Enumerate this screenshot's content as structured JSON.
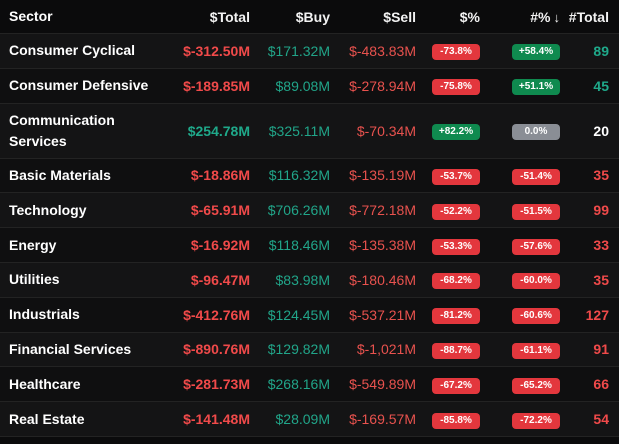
{
  "header": {
    "sector": "Sector",
    "total": "$Total",
    "buy": "$Buy",
    "sell": "$Sell",
    "pct": "$%",
    "count_pct": "#%",
    "count": "#Total",
    "sort_icon": "↓"
  },
  "rows": [
    {
      "sector": "Consumer Cyclical",
      "total": "$-312.50M",
      "buy": "$171.32M",
      "sell": "$-483.83M",
      "pct": "-73.8%",
      "count_pct": "+58.4%",
      "count": "89"
    },
    {
      "sector": "Consumer Defensive",
      "total": "$-189.85M",
      "buy": "$89.08M",
      "sell": "$-278.94M",
      "pct": "-75.8%",
      "count_pct": "+51.1%",
      "count": "45"
    },
    {
      "sector": "Communication Services",
      "total": "$254.78M",
      "buy": "$325.11M",
      "sell": "$-70.34M",
      "pct": "+82.2%",
      "count_pct": "0.0%",
      "count": "20"
    },
    {
      "sector": "Basic Materials",
      "total": "$-18.86M",
      "buy": "$116.32M",
      "sell": "$-135.19M",
      "pct": "-53.7%",
      "count_pct": "-51.4%",
      "count": "35"
    },
    {
      "sector": "Technology",
      "total": "$-65.91M",
      "buy": "$706.26M",
      "sell": "$-772.18M",
      "pct": "-52.2%",
      "count_pct": "-51.5%",
      "count": "99"
    },
    {
      "sector": "Energy",
      "total": "$-16.92M",
      "buy": "$118.46M",
      "sell": "$-135.38M",
      "pct": "-53.3%",
      "count_pct": "-57.6%",
      "count": "33"
    },
    {
      "sector": "Utilities",
      "total": "$-96.47M",
      "buy": "$83.98M",
      "sell": "$-180.46M",
      "pct": "-68.2%",
      "count_pct": "-60.0%",
      "count": "35"
    },
    {
      "sector": "Industrials",
      "total": "$-412.76M",
      "buy": "$124.45M",
      "sell": "$-537.21M",
      "pct": "-81.2%",
      "count_pct": "-60.6%",
      "count": "127"
    },
    {
      "sector": "Financial Services",
      "total": "$-890.76M",
      "buy": "$129.82M",
      "sell": "$-1,021M",
      "pct": "-88.7%",
      "count_pct": "-61.1%",
      "count": "91"
    },
    {
      "sector": "Healthcare",
      "total": "$-281.73M",
      "buy": "$268.16M",
      "sell": "$-549.89M",
      "pct": "-67.2%",
      "count_pct": "-65.2%",
      "count": "66"
    },
    {
      "sector": "Real Estate",
      "total": "$-141.48M",
      "buy": "$28.09M",
      "sell": "$-169.57M",
      "pct": "-85.8%",
      "count_pct": "-72.2%",
      "count": "54"
    }
  ],
  "colors": {
    "negative": "#f04a4a",
    "positive": "#1fa98a",
    "pill_red": "#e3373d",
    "pill_green": "#0f8a4f",
    "pill_gray": "#8a8e95"
  }
}
